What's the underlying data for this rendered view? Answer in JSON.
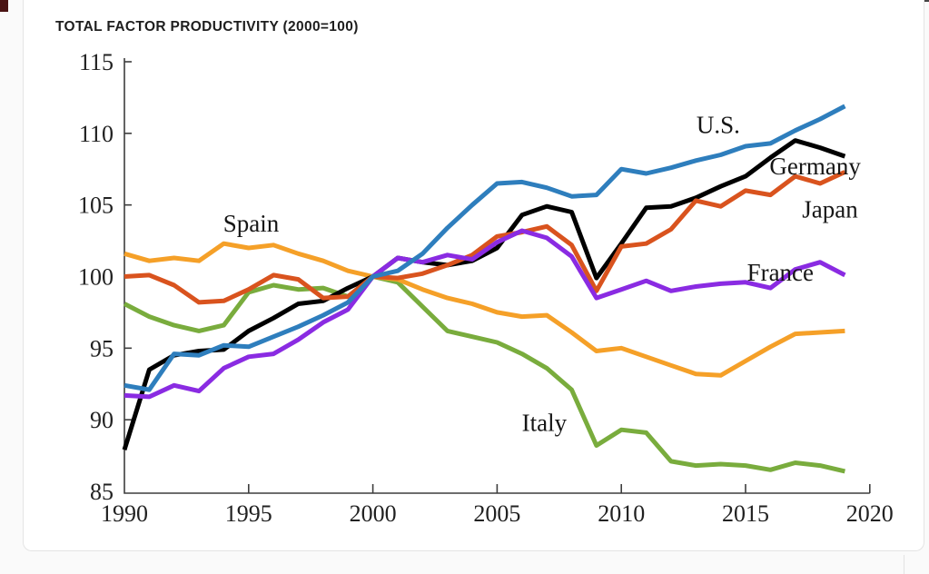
{
  "chart_data": {
    "type": "line",
    "title": "TOTAL FACTOR PRODUCTIVITY (2000=100)",
    "xlabel": "",
    "ylabel": "",
    "xlim": [
      1990,
      2020
    ],
    "ylim": [
      85,
      115
    ],
    "xticks": [
      1990,
      1995,
      2000,
      2005,
      2010,
      2015,
      2020
    ],
    "yticks": [
      85,
      90,
      95,
      100,
      105,
      110,
      115
    ],
    "grid": false,
    "legend_position": "inline-labels",
    "years": [
      1990,
      1991,
      1992,
      1993,
      1994,
      1995,
      1996,
      1997,
      1998,
      1999,
      2000,
      2001,
      2002,
      2003,
      2004,
      2005,
      2006,
      2007,
      2008,
      2009,
      2010,
      2011,
      2012,
      2013,
      2014,
      2015,
      2016,
      2017,
      2018,
      2019
    ],
    "series": [
      {
        "name": "Italy",
        "color": "#79AC3D",
        "label": {
          "x": 2006.9,
          "y": 89.8
        },
        "values": [
          98.1,
          97.2,
          96.6,
          96.2,
          96.6,
          98.9,
          99.4,
          99.1,
          99.2,
          98.6,
          100.0,
          99.6,
          97.9,
          96.2,
          95.8,
          95.4,
          94.6,
          93.6,
          92.1,
          88.2,
          89.3,
          89.1,
          87.1,
          86.8,
          86.9,
          86.8,
          86.5,
          87.0,
          86.8,
          86.4
        ]
      },
      {
        "name": "Spain",
        "color": "#F5A028",
        "label": {
          "x": 1995.1,
          "y": 103.7
        },
        "values": [
          101.6,
          101.1,
          101.3,
          101.1,
          102.3,
          102.0,
          102.2,
          101.6,
          101.1,
          100.4,
          100.0,
          99.8,
          99.1,
          98.5,
          98.1,
          97.5,
          97.2,
          97.3,
          96.1,
          94.8,
          95.0,
          94.4,
          93.8,
          93.2,
          93.1,
          94.1,
          95.1,
          96.0,
          96.1,
          96.2
        ]
      },
      {
        "name": "Germany",
        "color": "#000000",
        "label": {
          "x": 2017.8,
          "y": 107.7
        },
        "values": [
          87.9,
          93.5,
          94.5,
          94.8,
          94.9,
          96.2,
          97.1,
          98.1,
          98.3,
          99.2,
          100.0,
          101.3,
          101.0,
          100.8,
          101.1,
          102.0,
          104.3,
          104.9,
          104.5,
          99.9,
          102.3,
          104.8,
          104.9,
          105.5,
          106.3,
          107.0,
          108.3,
          109.5,
          109.0,
          108.4
        ]
      },
      {
        "name": "Japan",
        "color": "#D9531E",
        "label": {
          "x": 2018.4,
          "y": 104.7
        },
        "values": [
          100.0,
          100.1,
          99.4,
          98.2,
          98.3,
          99.1,
          100.1,
          99.8,
          98.5,
          98.6,
          100.0,
          99.9,
          100.2,
          100.8,
          101.5,
          102.8,
          103.1,
          103.5,
          102.2,
          99.0,
          102.1,
          102.3,
          103.3,
          105.3,
          104.9,
          106.0,
          105.7,
          107.0,
          106.5,
          107.3
        ]
      },
      {
        "name": "France",
        "color": "#8A2BE2",
        "label": {
          "x": 2016.4,
          "y": 100.3
        },
        "values": [
          91.7,
          91.6,
          92.4,
          92.0,
          93.6,
          94.4,
          94.6,
          95.6,
          96.8,
          97.7,
          100.0,
          101.3,
          101.0,
          101.5,
          101.2,
          102.4,
          103.2,
          102.7,
          101.4,
          98.5,
          99.1,
          99.7,
          99.0,
          99.3,
          99.5,
          99.6,
          99.2,
          100.5,
          101.0,
          100.1
        ]
      },
      {
        "name": "U.S.",
        "color": "#2E7EBD",
        "label": {
          "x": 2013.9,
          "y": 110.6
        },
        "values": [
          92.4,
          92.1,
          94.6,
          94.5,
          95.2,
          95.1,
          95.8,
          96.5,
          97.3,
          98.2,
          100.0,
          100.4,
          101.6,
          103.4,
          105.0,
          106.5,
          106.6,
          106.2,
          105.6,
          105.7,
          107.5,
          107.2,
          107.6,
          108.1,
          108.5,
          109.1,
          109.3,
          110.2,
          111.0,
          111.9
        ]
      }
    ]
  }
}
